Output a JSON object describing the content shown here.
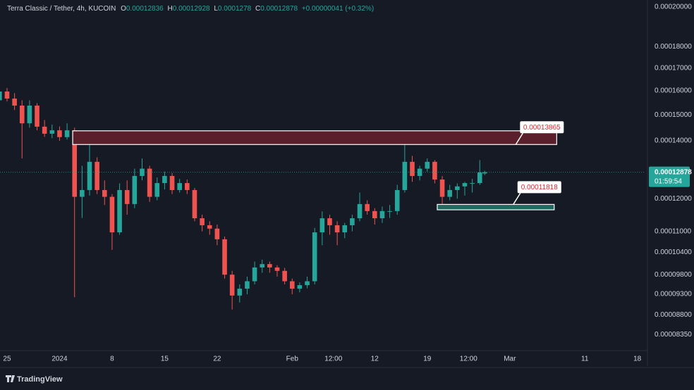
{
  "chart_data": {
    "type": "candlestick",
    "title": "Terra Classic / Tether, 4h, KUCOIN",
    "ohlc_prefixes": [
      "O",
      "H",
      "L",
      "C"
    ],
    "change": "+0.00000041 (+0.32%)",
    "countdown": "01:59:54",
    "brand": "TradingView",
    "up_color": "#26a69a",
    "down_color": "#ef5350",
    "log_scale": true,
    "grid": false,
    "x": [
      "2023-12-24",
      "2023-12-25",
      "2023-12-26",
      "2023-12-27",
      "2023-12-28",
      "2023-12-29",
      "2023-12-30",
      "2023-12-31",
      "2024-01-01",
      "2024-01-02",
      "2024-01-03",
      "2024-01-04",
      "2024-01-05",
      "2024-01-06",
      "2024-01-07",
      "2024-01-08",
      "2024-01-09",
      "2024-01-10",
      "2024-01-11",
      "2024-01-12",
      "2024-01-13",
      "2024-01-14",
      "2024-01-15",
      "2024-01-16",
      "2024-01-17",
      "2024-01-18",
      "2024-01-19",
      "2024-01-20",
      "2024-01-21",
      "2024-01-22",
      "2024-01-23",
      "2024-01-24",
      "2024-01-25",
      "2024-01-26",
      "2024-01-27",
      "2024-01-28",
      "2024-01-29",
      "2024-01-30",
      "2024-01-31",
      "2024-02-01",
      "2024-02-02",
      "2024-02-03",
      "2024-02-04",
      "2024-02-05",
      "2024-02-06",
      "2024-02-07",
      "2024-02-08",
      "2024-02-09",
      "2024-02-10",
      "2024-02-11",
      "2024-02-12",
      "2024-02-13",
      "2024-02-14",
      "2024-02-15",
      "2024-02-16",
      "2024-02-17",
      "2024-02-18",
      "2024-02-19",
      "2024-02-20",
      "2024-02-21",
      "2024-02-22",
      "2024-02-23",
      "2024-02-24",
      "2024-02-25",
      "2024-02-26",
      "2024-02-26T16:00"
    ],
    "open": [
      0.000156,
      0.0001597,
      0.0001567,
      0.0001538,
      0.0001467,
      0.0001538,
      0.0001454,
      0.0001427,
      0.000144,
      0.0001414,
      0.000144,
      0.0001206,
      0.0001228,
      0.0001324,
      0.0001228,
      0.0001206,
      0.0001097,
      0.0001228,
      0.0001183,
      0.0001275,
      0.00013,
      0.0001206,
      0.0001251,
      0.0001275,
      0.0001228,
      0.0001251,
      0.0001228,
      0.0001139,
      0.0001118,
      0.0001108,
      0.0001077,
      9.8e-05,
      9.27e-05,
      9.44e-05,
      9.63e-05,
      9.99e-05,
      0.0001008,
      9.99e-05,
      9.9e-05,
      9.63e-05,
      9.44e-05,
      9.53e-05,
      9.63e-05,
      0.0001097,
      0.0001139,
      0.0001118,
      0.0001097,
      0.0001118,
      0.0001139,
      0.0001183,
      0.0001161,
      0.0001139,
      0.0001161,
      0.0001161,
      0.0001228,
      0.0001324,
      0.0001275,
      0.00013,
      0.0001324,
      0.0001263,
      0.0001206,
      0.0001228,
      0.000124,
      0.0001251,
      0.0001251,
      0.00012836
    ],
    "high": [
      0.0001625,
      0.0001612,
      0.000159,
      0.000156,
      0.000156,
      0.0001548,
      0.000148,
      0.0001462,
      0.0001455,
      0.0001467,
      0.000145,
      0.000131,
      0.0001414,
      0.000134,
      0.000126,
      0.0001215,
      0.000125,
      0.000126,
      0.00013,
      0.0001336,
      0.000131,
      0.000127,
      0.000129,
      0.0001285,
      0.0001265,
      0.0001263,
      0.0001235,
      0.000115,
      0.000113,
      0.000112,
      0.0001085,
      9.9e-05,
      9.55e-05,
      9.75e-05,
      0.0001015,
      0.000102,
      0.0001015,
      0.0001005,
      9.98e-05,
      9.7e-05,
      9.6e-05,
      9.75e-05,
      0.000111,
      0.000116,
      0.000115,
      0.000113,
      0.0001125,
      0.000115,
      0.000122,
      0.0001195,
      0.000117,
      0.0001175,
      0.000118,
      0.0001245,
      0.0001414,
      0.0001345,
      0.000131,
      0.0001336,
      0.000133,
      0.0001275,
      0.0001245,
      0.000125,
      0.0001255,
      0.0001265,
      0.000133,
      0.00012928
    ],
    "low": [
      0.0001548,
      0.0001555,
      0.000152,
      0.0001336,
      0.000145,
      0.000144,
      0.0001415,
      0.000141,
      0.00014,
      0.0001405,
      9.23e-05,
      0.000114,
      0.000121,
      0.0001215,
      0.000118,
      0.0001047,
      0.000109,
      0.000115,
      0.000117,
      0.000126,
      0.000119,
      0.0001195,
      0.000123,
      0.0001215,
      0.000122,
      0.0001215,
      0.000113,
      0.00011,
      0.000109,
      0.000106,
      9.7e-05,
      8.93e-05,
      9.1e-05,
      9.3e-05,
      9.55e-05,
      9.85e-05,
      9.85e-05,
      9.75e-05,
      9.55e-05,
      9.3e-05,
      9.35e-05,
      9.45e-05,
      9.55e-05,
      0.000106,
      0.000109,
      0.000106,
      0.000108,
      0.00011,
      0.000113,
      0.000115,
      0.000112,
      0.0001125,
      0.000114,
      0.000115,
      0.000122,
      0.0001255,
      0.000126,
      0.000129,
      0.000125,
      0.000118,
      0.0001195,
      0.00012,
      0.000121,
      0.000122,
      0.0001245,
      0.0001278
    ],
    "close": [
      0.0001597,
      0.0001567,
      0.0001538,
      0.0001467,
      0.0001538,
      0.0001454,
      0.0001427,
      0.000144,
      0.0001414,
      0.000144,
      0.0001206,
      0.0001228,
      0.0001324,
      0.0001228,
      0.0001206,
      0.0001097,
      0.0001228,
      0.0001183,
      0.0001275,
      0.00013,
      0.0001206,
      0.0001251,
      0.0001275,
      0.0001228,
      0.0001251,
      0.0001228,
      0.0001139,
      0.0001118,
      0.0001108,
      0.0001077,
      9.8e-05,
      9.27e-05,
      9.44e-05,
      9.63e-05,
      9.99e-05,
      0.0001008,
      9.99e-05,
      9.9e-05,
      9.63e-05,
      9.44e-05,
      9.53e-05,
      9.63e-05,
      0.0001097,
      0.0001139,
      0.0001118,
      0.0001097,
      0.0001118,
      0.0001139,
      0.0001183,
      0.0001161,
      0.0001139,
      0.0001161,
      0.0001161,
      0.0001228,
      0.0001324,
      0.0001275,
      0.00013,
      0.0001324,
      0.0001263,
      0.0001206,
      0.0001228,
      0.000124,
      0.0001251,
      0.0001251,
      0.0001287,
      0.00012878
    ],
    "xlim": [
      "2023-12-24T01:30",
      "2024-03-19T01:30"
    ],
    "ylim": [
      8.05e-05,
      0.0002038
    ],
    "xticks": [
      {
        "value": "2023-12-25",
        "label": "25"
      },
      {
        "value": "2024-01-01",
        "label": "2024"
      },
      {
        "value": "2024-01-08",
        "label": "8"
      },
      {
        "value": "2024-01-15",
        "label": "15"
      },
      {
        "value": "2024-01-22",
        "label": "22"
      },
      {
        "value": "2024-02-01",
        "label": "Feb"
      },
      {
        "value": "2024-02-06T12:00",
        "label": "12:00"
      },
      {
        "value": "2024-02-12",
        "label": "12"
      },
      {
        "value": "2024-02-19",
        "label": "19"
      },
      {
        "value": "2024-02-24T12:00",
        "label": "12:00"
      },
      {
        "value": "2024-03-01",
        "label": "Mar"
      },
      {
        "value": "2024-03-11",
        "label": "11"
      },
      {
        "value": "2024-03-18",
        "label": "18"
      }
    ],
    "yticks": [
      {
        "value": 0.0002,
        "label": "0.00020000"
      },
      {
        "value": 0.00018,
        "label": "0.00018000"
      },
      {
        "value": 0.00017,
        "label": "0.00017000"
      },
      {
        "value": 0.00016,
        "label": "0.00016000"
      },
      {
        "value": 0.00015,
        "label": "0.00015000"
      },
      {
        "value": 0.00014,
        "label": "0.00014000"
      },
      {
        "value": 0.00012,
        "label": "0.00012000"
      },
      {
        "value": 0.00011,
        "label": "0.00011000"
      },
      {
        "value": 0.000104,
        "label": "0.00010400"
      },
      {
        "value": 9.8e-05,
        "label": "0.00009800"
      },
      {
        "value": 9.3e-05,
        "label": "0.00009300"
      },
      {
        "value": 8.8e-05,
        "label": "0.00008800"
      },
      {
        "value": 8.35e-05,
        "label": "0.00008350"
      }
    ],
    "zones": [
      {
        "name": "resistance",
        "top": 0.0001438,
        "bottom": 0.00013865,
        "start": "2024-01-02T18:00",
        "end": "2024-03-07T06:00",
        "color": "#5a1f2b",
        "label_of": "bottom"
      },
      {
        "name": "support",
        "top": 0.00011818,
        "bottom": 0.0001165,
        "start": "2024-02-20T08:00",
        "end": "2024-03-06T22:00",
        "color": "#1f6b62",
        "label_of": "top"
      }
    ]
  }
}
